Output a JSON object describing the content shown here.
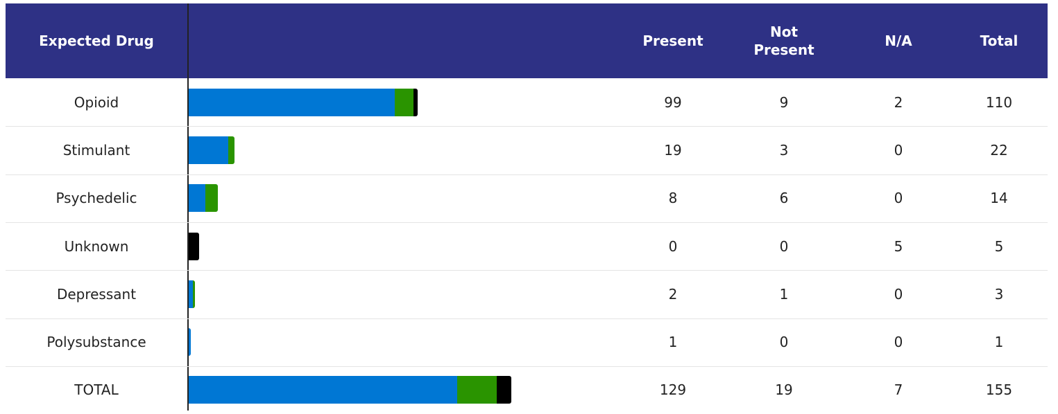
{
  "table": {
    "header": {
      "label": "Expected Drug",
      "columns": [
        "Present",
        "Not Present",
        "N/A",
        "Total"
      ]
    },
    "bar_colors": [
      "#0077d4",
      "#2a9400",
      "#000000"
    ],
    "rows": [
      {
        "drug": "Opioid",
        "values": [
          99,
          9,
          2
        ],
        "total": 110
      },
      {
        "drug": "Stimulant",
        "values": [
          19,
          3,
          0
        ],
        "total": 22
      },
      {
        "drug": "Psychedelic",
        "values": [
          8,
          6,
          0
        ],
        "total": 14
      },
      {
        "drug": "Unknown",
        "values": [
          0,
          0,
          5
        ],
        "total": 5
      },
      {
        "drug": "Depressant",
        "values": [
          2,
          1,
          0
        ],
        "total": 3
      },
      {
        "drug": "Polysubstance",
        "values": [
          1,
          0,
          0
        ],
        "total": 1
      },
      {
        "drug": "TOTAL",
        "values": [
          129,
          19,
          7
        ],
        "total": 155
      }
    ]
  }
}
